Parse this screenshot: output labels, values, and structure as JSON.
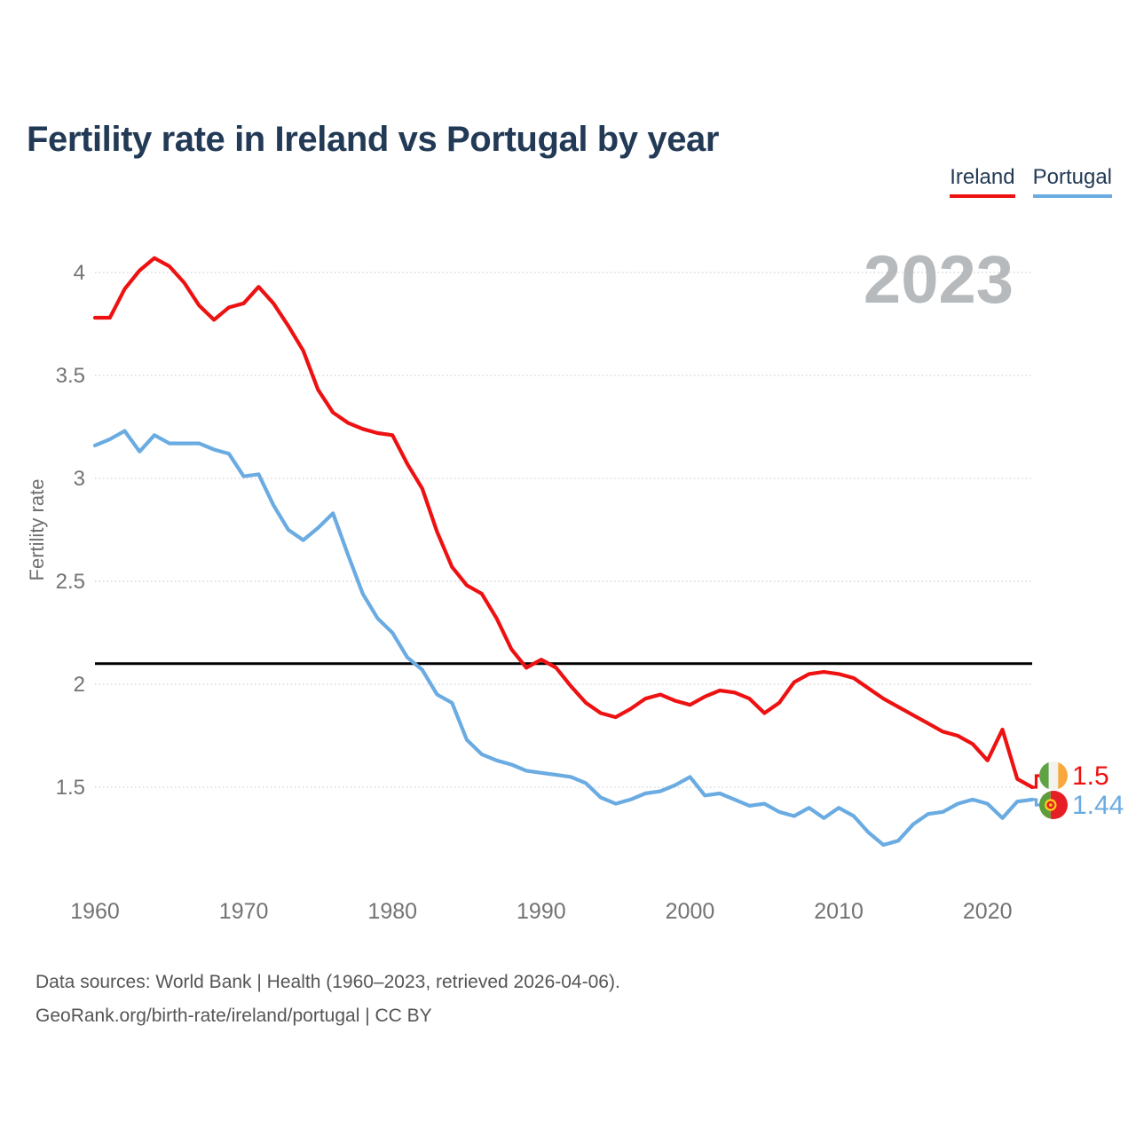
{
  "title": "Fertility rate in Ireland vs Portugal by year",
  "watermark_year": "2023",
  "chart_data": {
    "type": "line",
    "title": "Fertility rate in Ireland vs Portugal by year",
    "ylabel": "Fertility rate",
    "xlabel": "",
    "grid": "horizontal-dotted",
    "legend_position": "top-right",
    "xlim": [
      1960,
      2023
    ],
    "ylim_displayed": [
      1.5,
      4
    ],
    "reference_line_value": 2.1,
    "yticks": [
      "4",
      "3.5",
      "3",
      "2.5",
      "2",
      "1.5"
    ],
    "ytick_values": [
      4,
      3.5,
      3,
      2.5,
      2,
      1.5
    ],
    "xticks": [
      "1960",
      "1970",
      "1980",
      "1990",
      "2000",
      "2010",
      "2020"
    ],
    "xtick_values": [
      1960,
      1970,
      1980,
      1990,
      2000,
      2010,
      2020
    ],
    "x": [
      1960,
      1961,
      1962,
      1963,
      1964,
      1965,
      1966,
      1967,
      1968,
      1969,
      1970,
      1971,
      1972,
      1973,
      1974,
      1975,
      1976,
      1977,
      1978,
      1979,
      1980,
      1981,
      1982,
      1983,
      1984,
      1985,
      1986,
      1987,
      1988,
      1989,
      1990,
      1991,
      1992,
      1993,
      1994,
      1995,
      1996,
      1997,
      1998,
      1999,
      2000,
      2001,
      2002,
      2003,
      2004,
      2005,
      2006,
      2007,
      2008,
      2009,
      2010,
      2011,
      2012,
      2013,
      2014,
      2015,
      2016,
      2017,
      2018,
      2019,
      2020,
      2021,
      2022,
      2023
    ],
    "series": [
      {
        "name": "Ireland",
        "color": "#ee1111",
        "end_label": "1.5",
        "flag_icon": "ireland-flag-icon",
        "values": [
          3.78,
          3.78,
          3.92,
          4.01,
          4.07,
          4.03,
          3.95,
          3.84,
          3.77,
          3.83,
          3.85,
          3.93,
          3.85,
          3.74,
          3.62,
          3.43,
          3.32,
          3.27,
          3.24,
          3.22,
          3.21,
          3.07,
          2.95,
          2.74,
          2.57,
          2.48,
          2.44,
          2.32,
          2.17,
          2.08,
          2.12,
          2.08,
          1.99,
          1.91,
          1.86,
          1.84,
          1.88,
          1.93,
          1.95,
          1.92,
          1.9,
          1.94,
          1.97,
          1.96,
          1.93,
          1.86,
          1.91,
          2.01,
          2.05,
          2.06,
          2.05,
          2.03,
          1.98,
          1.93,
          1.89,
          1.85,
          1.81,
          1.77,
          1.75,
          1.71,
          1.63,
          1.78,
          1.54,
          1.5
        ]
      },
      {
        "name": "Portugal",
        "color": "#6aabe2",
        "end_label": "1.44",
        "flag_icon": "portugal-flag-icon",
        "values": [
          3.16,
          3.19,
          3.23,
          3.13,
          3.21,
          3.17,
          3.17,
          3.17,
          3.14,
          3.12,
          3.01,
          3.02,
          2.87,
          2.75,
          2.7,
          2.76,
          2.83,
          2.63,
          2.44,
          2.32,
          2.25,
          2.13,
          2.07,
          1.95,
          1.91,
          1.73,
          1.66,
          1.63,
          1.61,
          1.58,
          1.57,
          1.56,
          1.55,
          1.52,
          1.45,
          1.42,
          1.44,
          1.47,
          1.48,
          1.51,
          1.55,
          1.46,
          1.47,
          1.44,
          1.41,
          1.42,
          1.38,
          1.36,
          1.4,
          1.35,
          1.4,
          1.36,
          1.28,
          1.22,
          1.24,
          1.32,
          1.37,
          1.38,
          1.42,
          1.44,
          1.42,
          1.35,
          1.43,
          1.44
        ]
      }
    ]
  },
  "footer": {
    "line1": "Data sources: World Bank | Health (1960–2023, retrieved 2026-04-06).",
    "line2": "GeoRank.org/birth-rate/ireland/portugal | CC BY"
  }
}
